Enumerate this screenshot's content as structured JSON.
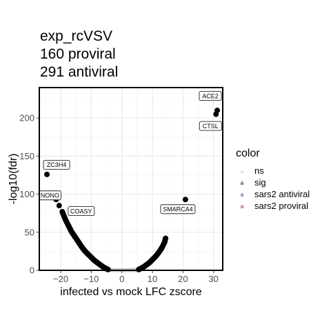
{
  "chart_data": {
    "type": "scatter",
    "title_lines": [
      "exp_rcVSV",
      "160 proviral",
      "291 antiviral"
    ],
    "xlabel": "infected vs mock LFC zscore",
    "ylabel": "-log10(fdr)",
    "xlim": [
      -27,
      33
    ],
    "ylim": [
      0,
      240
    ],
    "x_ticks": [
      -20,
      -10,
      0,
      10,
      20,
      30
    ],
    "x_tick_labels": [
      "−20",
      "−10",
      "0",
      "10",
      "20",
      "30"
    ],
    "y_ticks": [
      0,
      50,
      100,
      150,
      200
    ],
    "y_tick_labels": [
      "0",
      "50",
      "100",
      "150",
      "200"
    ],
    "grid": true,
    "legend": {
      "title": "color",
      "placement": "right",
      "entries": [
        {
          "label": "ns",
          "color": "#c9c9c9"
        },
        {
          "label": "sig",
          "color": "#000000"
        },
        {
          "label": "sars2 antiviral",
          "color": "#2b2b8c"
        },
        {
          "label": "sars2 proviral",
          "color": "#8b1a2b"
        }
      ]
    },
    "series": [
      {
        "name": "sig",
        "color": "#000000",
        "points": [
          [
            -24.5,
            126
          ],
          [
            -21.5,
            93
          ],
          [
            -20.5,
            85
          ],
          [
            -19.5,
            77
          ],
          [
            -19,
            72
          ],
          [
            -18.5,
            67
          ],
          [
            -18,
            63
          ],
          [
            -17.5,
            59
          ],
          [
            -17,
            55
          ],
          [
            -16.5,
            51
          ],
          [
            -16,
            48
          ],
          [
            -15.5,
            45
          ],
          [
            -15,
            42
          ],
          [
            -14.5,
            39
          ],
          [
            -14,
            36
          ],
          [
            -13.5,
            33
          ],
          [
            -13,
            30
          ],
          [
            -12.5,
            27.5
          ],
          [
            -12,
            25
          ],
          [
            -11.5,
            23
          ],
          [
            -11,
            21
          ],
          [
            -10.5,
            19
          ],
          [
            -10,
            17
          ],
          [
            -9.5,
            15
          ],
          [
            -9,
            13
          ],
          [
            -8.5,
            11.5
          ],
          [
            -8,
            10
          ],
          [
            -7.5,
            8.5
          ],
          [
            -7,
            7
          ],
          [
            -6.5,
            5.5
          ],
          [
            -6,
            4.2
          ],
          [
            -5.5,
            3
          ],
          [
            -5,
            2
          ],
          [
            -4.5,
            1
          ],
          [
            5.5,
            1
          ],
          [
            6,
            2
          ],
          [
            6.5,
            3
          ],
          [
            7,
            4.2
          ],
          [
            7.5,
            5.5
          ],
          [
            8,
            7
          ],
          [
            8.5,
            8.5
          ],
          [
            9,
            10
          ],
          [
            9.5,
            12
          ],
          [
            10,
            14
          ],
          [
            10.5,
            16
          ],
          [
            11,
            18
          ],
          [
            11.5,
            20.5
          ],
          [
            12,
            23
          ],
          [
            12.5,
            26
          ],
          [
            13,
            29
          ],
          [
            13.5,
            33
          ],
          [
            14,
            37
          ],
          [
            14.3,
            42
          ],
          [
            20.8,
            93
          ],
          [
            30.8,
            205
          ],
          [
            31.2,
            210
          ]
        ]
      },
      {
        "name": "ns",
        "color": "#c9c9c9",
        "points": [
          [
            -4.5,
            0.5
          ],
          [
            -3.5,
            0.4
          ],
          [
            -2.5,
            0.3
          ],
          [
            -1.5,
            0.2
          ],
          [
            -0.5,
            0.2
          ],
          [
            0.5,
            0.2
          ],
          [
            1.5,
            0.2
          ],
          [
            2.5,
            0.3
          ],
          [
            3.5,
            0.4
          ],
          [
            4.5,
            0.5
          ],
          [
            5,
            0.6
          ]
        ]
      }
    ],
    "annotations": [
      {
        "text": "ACE2",
        "x": 31.2,
        "y": 210
      },
      {
        "text": "CTSL",
        "x": 30.8,
        "y": 205
      },
      {
        "text": "ZC3H4",
        "x": -24.5,
        "y": 126
      },
      {
        "text": "NONO",
        "x": -21.5,
        "y": 93
      },
      {
        "text": "COASY",
        "x": -20.5,
        "y": 85
      },
      {
        "text": "SMARCA4",
        "x": 20.8,
        "y": 93
      }
    ]
  }
}
